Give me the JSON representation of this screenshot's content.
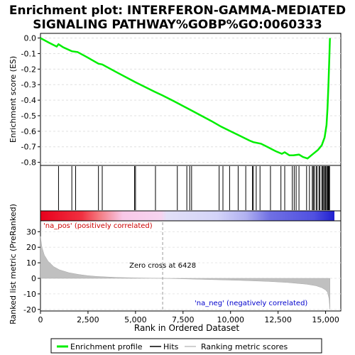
{
  "chart_data": {
    "type": "line",
    "title_line1": "Enrichment plot: INTERFERON-GAMMA-MEDIATED",
    "title_line2": "SIGNALING PATHWAY%GOBP%GO:0060333",
    "top_panel": {
      "ylabel": "Enrichment score (ES)",
      "ylim": [
        -0.82,
        0.03
      ],
      "yticks": [
        0.0,
        -0.1,
        -0.2,
        -0.3,
        -0.4,
        -0.5,
        -0.6,
        -0.7,
        -0.8
      ],
      "ytick_labels": [
        "0.0",
        "-0.1",
        "-0.2",
        "-0.3",
        "-0.4",
        "-0.5",
        "-0.6",
        "-0.7",
        "-0.8"
      ],
      "series_name": "Enrichment profile",
      "color": "#00ee00",
      "es_curve": [
        [
          0,
          0.0
        ],
        [
          450,
          -0.03
        ],
        [
          850,
          -0.055
        ],
        [
          950,
          -0.04
        ],
        [
          1200,
          -0.06
        ],
        [
          1650,
          -0.085
        ],
        [
          1950,
          -0.09
        ],
        [
          2400,
          -0.12
        ],
        [
          3050,
          -0.165
        ],
        [
          3250,
          -0.17
        ],
        [
          4000,
          -0.22
        ],
        [
          5000,
          -0.285
        ],
        [
          6000,
          -0.345
        ],
        [
          6428,
          -0.37
        ],
        [
          7000,
          -0.405
        ],
        [
          8000,
          -0.47
        ],
        [
          9000,
          -0.535
        ],
        [
          9500,
          -0.57
        ],
        [
          10000,
          -0.6
        ],
        [
          10500,
          -0.63
        ],
        [
          11000,
          -0.66
        ],
        [
          11200,
          -0.67
        ],
        [
          11600,
          -0.68
        ],
        [
          12000,
          -0.705
        ],
        [
          12400,
          -0.73
        ],
        [
          12700,
          -0.745
        ],
        [
          12850,
          -0.735
        ],
        [
          13100,
          -0.755
        ],
        [
          13300,
          -0.755
        ],
        [
          13600,
          -0.75
        ],
        [
          13800,
          -0.765
        ],
        [
          14050,
          -0.775
        ],
        [
          14300,
          -0.75
        ],
        [
          14600,
          -0.72
        ],
        [
          14800,
          -0.69
        ],
        [
          14950,
          -0.64
        ],
        [
          15050,
          -0.56
        ],
        [
          15100,
          -0.45
        ],
        [
          15150,
          -0.3
        ],
        [
          15200,
          -0.12
        ],
        [
          15230,
          0.0
        ]
      ]
    },
    "hits_panel": {
      "series_name": "Hits",
      "hit_positions": [
        950,
        1650,
        1850,
        3050,
        3250,
        4950,
        5000,
        6050,
        7200,
        7700,
        7850,
        7950,
        9400,
        9600,
        9950,
        10400,
        10800,
        11150,
        11200,
        11350,
        11550,
        12100,
        12650,
        12850,
        13250,
        13350,
        13450,
        13600,
        14000,
        14150,
        14300,
        14350,
        14400,
        14500,
        14550,
        14650,
        14700,
        14800,
        14850,
        14900,
        14950,
        15000,
        15050,
        15100,
        15130,
        15160,
        15190,
        15210
      ]
    },
    "rank_panel": {
      "ylabel": "Ranked list metric (PreRanked)",
      "xlabel": "Rank in Ordered Dataset",
      "xlim": [
        0,
        15800
      ],
      "ylim": [
        -21,
        37
      ],
      "yticks": [
        30,
        20,
        10,
        0,
        -10,
        -20
      ],
      "ytick_labels": [
        "30",
        "20",
        "10",
        "0",
        "-10",
        "-20"
      ],
      "xticks": [
        0,
        2500,
        5000,
        7500,
        10000,
        12500,
        15000
      ],
      "xtick_labels": [
        "0",
        "2,500",
        "5,000",
        "7,500",
        "10,000",
        "12,500",
        "15,000"
      ],
      "series_name": "Ranking metric scores",
      "metric_curve": [
        [
          0,
          27
        ],
        [
          80,
          20
        ],
        [
          200,
          15
        ],
        [
          400,
          11
        ],
        [
          700,
          7.5
        ],
        [
          1000,
          5.5
        ],
        [
          1500,
          3.6
        ],
        [
          2000,
          2.5
        ],
        [
          2500,
          1.7
        ],
        [
          3000,
          1.2
        ],
        [
          4000,
          0.6
        ],
        [
          5000,
          0.3
        ],
        [
          6428,
          0
        ],
        [
          7500,
          -0.3
        ],
        [
          9000,
          -0.8
        ],
        [
          10500,
          -1.3
        ],
        [
          12000,
          -2.0
        ],
        [
          13000,
          -2.7
        ],
        [
          14000,
          -3.8
        ],
        [
          14500,
          -4.8
        ],
        [
          14800,
          -6.0
        ],
        [
          15000,
          -7.5
        ],
        [
          15100,
          -9
        ],
        [
          15180,
          -13
        ],
        [
          15230,
          -20
        ]
      ],
      "zero_cross_label": "Zero cross at 6428",
      "zero_cross_rank": 6428,
      "pos_label": "'na_pos' (positively correlated)",
      "neg_label": "'na_neg' (negatively correlated)"
    },
    "legend": {
      "items": [
        {
          "label": "Enrichment profile",
          "color": "#00ee00"
        },
        {
          "label": "Hits",
          "color": "#000000"
        },
        {
          "label": "Ranking metric scores",
          "color": "#c0c0c0"
        }
      ]
    }
  }
}
